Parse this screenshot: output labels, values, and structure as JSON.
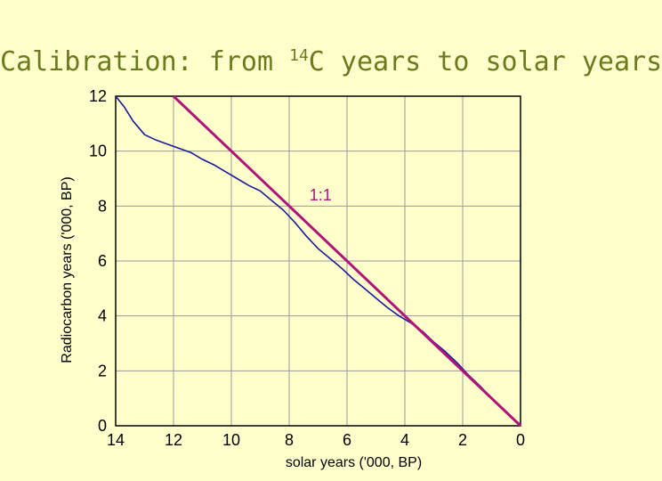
{
  "slide": {
    "title_pre": "Calibration: from ",
    "title_sup": "14",
    "title_post": "C years to solar years"
  },
  "chart_data": {
    "type": "line",
    "title": "Calibration: from 14C years to solar years",
    "xlabel": "solar years ('000, BP)",
    "ylabel": "Radiocarbon years ('000, BP)",
    "xlim": [
      14,
      0
    ],
    "ylim": [
      0,
      12
    ],
    "x_ticks": [
      14,
      12,
      10,
      8,
      6,
      4,
      2,
      0
    ],
    "y_ticks": [
      0,
      2,
      4,
      6,
      8,
      10,
      12
    ],
    "x_tick_labels": [
      "14",
      "12",
      "10",
      "8",
      "6",
      "4",
      "2",
      "0"
    ],
    "y_tick_labels": [
      "0",
      "2",
      "4",
      "6",
      "8",
      "10",
      "12"
    ],
    "grid": true,
    "series": [
      {
        "color": "#1a1aa0",
        "x": [
          14.0,
          13.7,
          13.4,
          13.0,
          12.6,
          12.2,
          11.8,
          11.4,
          11.0,
          10.6,
          10.2,
          9.8,
          9.4,
          9.0,
          8.6,
          8.2,
          7.8,
          7.4,
          7.0,
          6.6,
          6.2,
          5.8,
          5.4,
          5.0,
          4.6,
          4.2,
          3.8,
          3.4,
          3.0,
          2.6,
          2.2,
          1.8,
          1.4,
          1.0,
          0.6,
          0.2,
          0.0
        ],
        "y": [
          12.0,
          11.6,
          11.1,
          10.6,
          10.4,
          10.25,
          10.1,
          9.95,
          9.7,
          9.5,
          9.25,
          9.0,
          8.75,
          8.55,
          8.2,
          7.85,
          7.4,
          6.9,
          6.45,
          6.1,
          5.75,
          5.35,
          5.0,
          4.65,
          4.3,
          4.0,
          3.75,
          3.45,
          3.05,
          2.7,
          2.3,
          1.85,
          1.45,
          1.0,
          0.6,
          0.2,
          0.05
        ]
      },
      {
        "label": "1:1",
        "color": "#b0147a",
        "x": [
          12.0,
          0.0
        ],
        "y": [
          12.0,
          0.0
        ]
      }
    ],
    "annotations": [
      {
        "text": "1:1",
        "x": 7.3,
        "y": 8.2
      }
    ]
  }
}
